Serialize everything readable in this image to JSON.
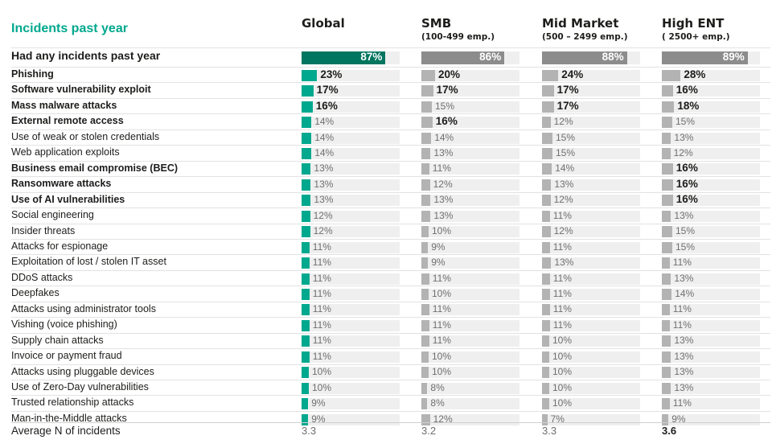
{
  "header": {
    "title": "Incidents past year"
  },
  "columns": [
    {
      "name": "Global",
      "sub": ""
    },
    {
      "name": "SMB",
      "sub": "(100-499 emp.)"
    },
    {
      "name": "Mid Market",
      "sub": "(500 – 2499 emp.)"
    },
    {
      "name": "High ENT",
      "sub": "( 2500+ emp.)"
    }
  ],
  "colors": {
    "accent": "#00a88e",
    "accent_dark": "#00755f",
    "grey_bar": "#b3b3b3",
    "grey_dark": "#8c8c8c",
    "track": "#efefef"
  },
  "chart_data": {
    "type": "bar",
    "title": "Incidents past year",
    "series_names": [
      "Global",
      "SMB",
      "Mid Market",
      "High ENT"
    ],
    "categories": [
      "Had any incidents past year",
      "Phishing",
      "Software vulnerability exploit",
      "Mass malware attacks",
      "External remote access",
      "Use of weak or stolen credentials",
      "Web application exploits",
      "Business email compromise (BEC)",
      "Ransomware attacks",
      "Use of AI vulnerabilities",
      "Social engineering",
      "Insider threats",
      "Attacks for espionage",
      "Exploitation of lost / stolen IT asset",
      "DDoS attacks",
      "Deepfakes",
      "Attacks using administrator tools",
      "Vishing (voice phishing)",
      "Supply chain attacks",
      "Invoice or payment fraud",
      "Attacks using pluggable devices",
      "Use of Zero-Day vulnerabilities",
      "Trusted relationship attacks",
      "Man-in-the-Middle attacks"
    ],
    "bold_categories": [
      1,
      2,
      3,
      4,
      7,
      8,
      9
    ],
    "values": [
      [
        87,
        86,
        88,
        89
      ],
      [
        23,
        20,
        24,
        28
      ],
      [
        17,
        17,
        17,
        16
      ],
      [
        16,
        15,
        17,
        18
      ],
      [
        14,
        16,
        12,
        15
      ],
      [
        14,
        14,
        15,
        13
      ],
      [
        14,
        13,
        15,
        12
      ],
      [
        13,
        11,
        14,
        16
      ],
      [
        13,
        12,
        13,
        16
      ],
      [
        13,
        13,
        12,
        16
      ],
      [
        12,
        13,
        11,
        13
      ],
      [
        12,
        10,
        12,
        15
      ],
      [
        11,
        9,
        11,
        15
      ],
      [
        11,
        9,
        13,
        11
      ],
      [
        11,
        11,
        11,
        13
      ],
      [
        11,
        10,
        11,
        14
      ],
      [
        11,
        11,
        11,
        11
      ],
      [
        11,
        11,
        11,
        11
      ],
      [
        11,
        11,
        10,
        13
      ],
      [
        11,
        10,
        10,
        13
      ],
      [
        10,
        10,
        10,
        13
      ],
      [
        10,
        8,
        10,
        13
      ],
      [
        9,
        8,
        10,
        11
      ],
      [
        9,
        12,
        7,
        9
      ]
    ],
    "labels": [
      [
        "87%",
        "86%",
        "88%",
        "89%"
      ],
      [
        "23%",
        "20%",
        "24%",
        "28%"
      ],
      [
        "17%",
        "17%",
        "17%",
        "16%"
      ],
      [
        "16%",
        "15%",
        "17%",
        "18%"
      ],
      [
        "14%",
        "16%",
        "12%",
        "15%"
      ],
      [
        "14%",
        "14%",
        "15%",
        "13%"
      ],
      [
        "14%",
        "13%",
        "15%",
        "12%"
      ],
      [
        "13%",
        "11%",
        "14%",
        "16%"
      ],
      [
        "13%",
        "12%",
        "13%",
        "16%"
      ],
      [
        "13%",
        "13%",
        "12%",
        "16%"
      ],
      [
        "12%",
        "13%",
        "11%",
        "13%"
      ],
      [
        "12%",
        "10%",
        "12%",
        "15%"
      ],
      [
        "11%",
        "9%",
        "11%",
        "15%"
      ],
      [
        "11%",
        "9%",
        "13%",
        "11%"
      ],
      [
        "11%",
        "11%",
        "11%",
        "13%"
      ],
      [
        "11%",
        "10%",
        "11%",
        "14%"
      ],
      [
        "11%",
        "11%",
        "11%",
        "11%"
      ],
      [
        "11%",
        "11%",
        "11%",
        "11%"
      ],
      [
        "11%",
        "11%",
        "10%",
        "13%"
      ],
      [
        "11%",
        "10%",
        "10%",
        "13%"
      ],
      [
        "10%",
        "10%",
        "10%",
        "13%"
      ],
      [
        "10%",
        "8%",
        "10%",
        "13%"
      ],
      [
        "9%",
        "8%",
        "10%",
        "11%"
      ],
      [
        "9%",
        "12%",
        "7%",
        "9%"
      ]
    ],
    "bold_cells": [
      [
        false,
        false,
        false,
        false
      ],
      [
        true,
        true,
        true,
        true
      ],
      [
        true,
        true,
        true,
        true
      ],
      [
        true,
        false,
        true,
        true
      ],
      [
        false,
        true,
        false,
        false
      ],
      [
        false,
        false,
        false,
        false
      ],
      [
        false,
        false,
        false,
        false
      ],
      [
        false,
        false,
        false,
        true
      ],
      [
        false,
        false,
        false,
        true
      ],
      [
        false,
        false,
        false,
        true
      ],
      [
        false,
        false,
        false,
        false
      ],
      [
        false,
        false,
        false,
        false
      ],
      [
        false,
        false,
        false,
        false
      ],
      [
        false,
        false,
        false,
        false
      ],
      [
        false,
        false,
        false,
        false
      ],
      [
        false,
        false,
        false,
        false
      ],
      [
        false,
        false,
        false,
        false
      ],
      [
        false,
        false,
        false,
        false
      ],
      [
        false,
        false,
        false,
        false
      ],
      [
        false,
        false,
        false,
        false
      ],
      [
        false,
        false,
        false,
        false
      ],
      [
        false,
        false,
        false,
        false
      ],
      [
        false,
        false,
        false,
        false
      ],
      [
        false,
        false,
        false,
        false
      ]
    ],
    "average": {
      "label": "Average N of incidents",
      "values": [
        "3.3",
        "3.2",
        "3.3",
        "3.6"
      ],
      "bold": [
        false,
        false,
        false,
        true
      ]
    }
  }
}
